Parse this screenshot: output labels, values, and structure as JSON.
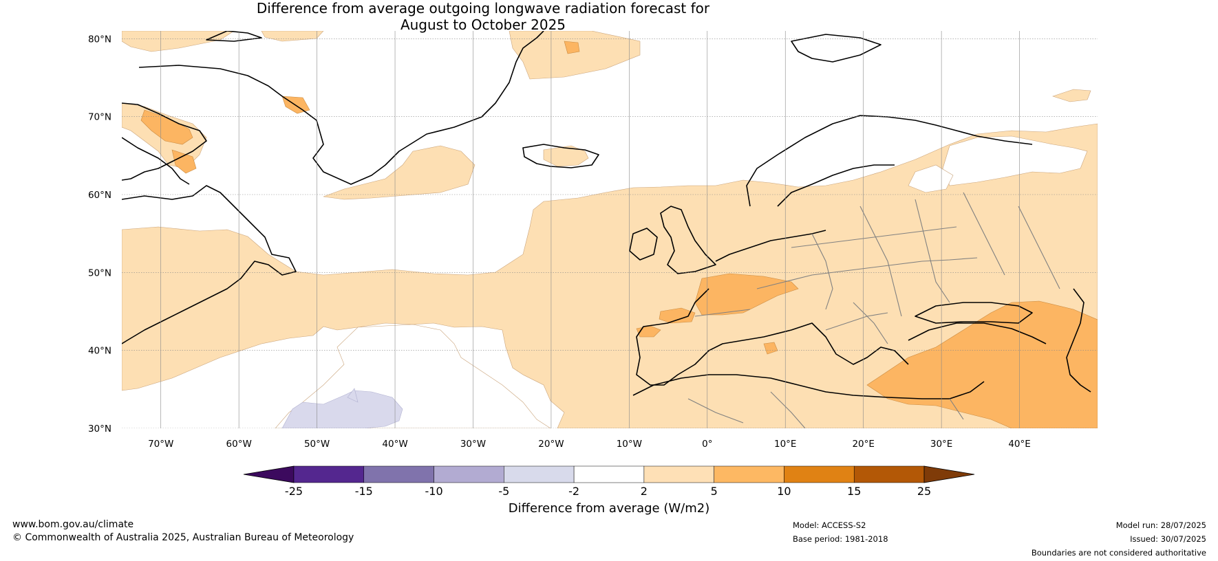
{
  "title": {
    "line1": "Difference from average outgoing longwave radiation forecast for",
    "line2": "August to October 2025"
  },
  "map": {
    "lat_labels": [
      "80°N",
      "70°N",
      "60°N",
      "50°N",
      "40°N",
      "30°N"
    ],
    "lat_values": [
      80,
      70,
      60,
      50,
      40,
      30
    ],
    "lon_labels": [
      "70°W",
      "60°W",
      "50°W",
      "40°W",
      "30°W",
      "20°W",
      "10°W",
      "0°",
      "10°E",
      "20°E",
      "30°E",
      "40°E"
    ],
    "lon_values": [
      -70,
      -60,
      -50,
      -40,
      -30,
      -20,
      -10,
      0,
      10,
      20,
      30,
      40
    ],
    "lon_range": [
      -75,
      50
    ],
    "lat_range": [
      30,
      81
    ],
    "region_colors": {
      "light_orange": "#fddfb3",
      "mid_orange": "#fcb562",
      "light_purple": "#d9d9ec",
      "coast": "#000000",
      "border": "#808080"
    }
  },
  "colorbar": {
    "tick_labels": [
      "-25",
      "-15",
      "-10",
      "-5",
      "-2",
      "2",
      "5",
      "10",
      "15",
      "25"
    ],
    "colors": [
      "#3c0a5e",
      "#54278f",
      "#8073ac",
      "#b2abd2",
      "#d8daeb",
      "#ffffff",
      "#fee0b6",
      "#fdb863",
      "#e08214",
      "#b35806",
      "#7f3b08"
    ],
    "label": "Difference from average (W/m2)"
  },
  "footer": {
    "website": "www.bom.gov.au/climate",
    "copyright": "© Commonwealth of Australia 2025, Australian Bureau of Meteorology",
    "model": "Model: ACCESS-S2",
    "base_period": "Base period: 1981-2018",
    "model_run": "Model run: 28/07/2025",
    "issued": "Issued: 30/07/2025",
    "disclaimer": "Boundaries are not considered authoritative"
  }
}
